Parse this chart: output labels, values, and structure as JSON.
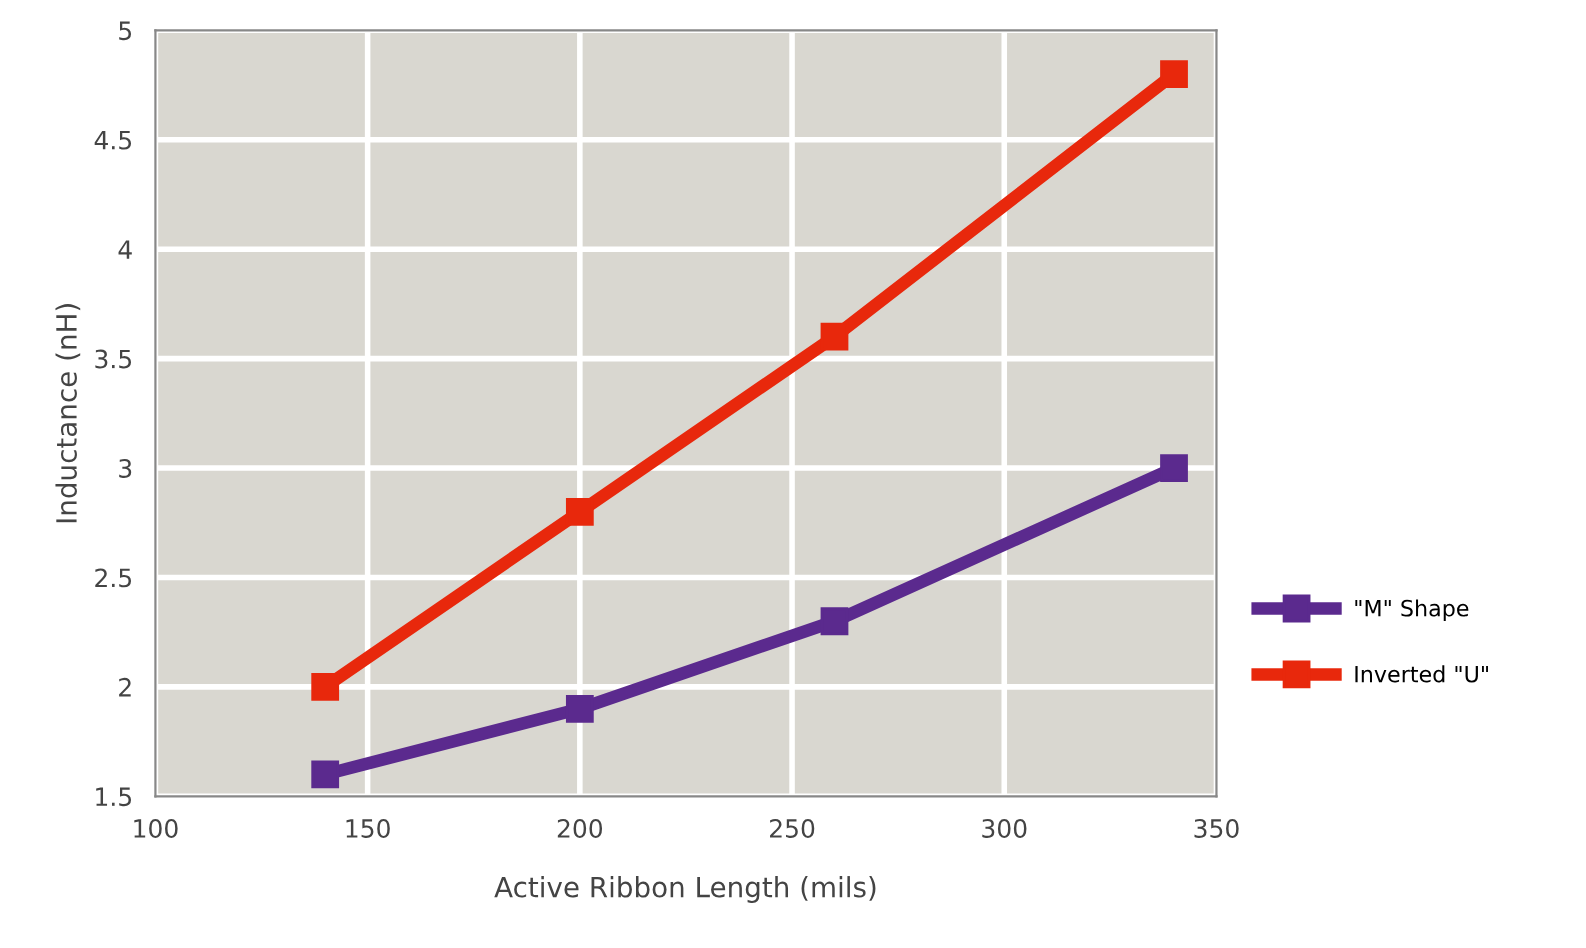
{
  "chart_data": {
    "type": "line",
    "xlabel": "Active Ribbon Length (mils)",
    "ylabel": "Inductance (nH)",
    "x": [
      140,
      200,
      260,
      340
    ],
    "series": [
      {
        "name": "\"M\" Shape",
        "color": "#5b2a8e",
        "values": [
          1.6,
          1.9,
          2.3,
          3.0
        ]
      },
      {
        "name": "Inverted \"U\"",
        "color": "#e8280c",
        "values": [
          2.0,
          2.8,
          3.6,
          4.8
        ]
      }
    ],
    "xlim": [
      100,
      350
    ],
    "xticks": [
      100,
      150,
      200,
      250,
      300,
      350
    ],
    "ylim": [
      1.5,
      5
    ],
    "yticks": [
      1.5,
      2,
      2.5,
      3,
      3.5,
      4,
      4.5,
      5
    ],
    "grid": true,
    "legend": "right",
    "marker": "square",
    "line_style": "solid"
  }
}
